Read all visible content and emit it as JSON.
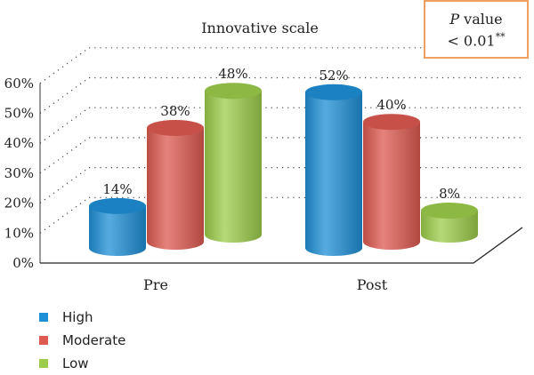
{
  "pvalue": {
    "line1_italic": "P",
    "line1_rest": " value",
    "line2": "< 0.01",
    "line2_sup": "**"
  },
  "colors": {
    "High": "#1f8fd6",
    "Moderate": "#dd5a50",
    "Low": "#9ccc4a",
    "pbox_border": "#f0a060"
  },
  "chart_data": {
    "type": "bar",
    "title": "Innovative scale",
    "categories": [
      "Pre",
      "Post"
    ],
    "series": [
      {
        "name": "High",
        "values": [
          14,
          52
        ],
        "labels": [
          "14%",
          "52%"
        ]
      },
      {
        "name": "Moderate",
        "values": [
          38,
          40
        ],
        "labels": [
          "38%",
          "40%"
        ]
      },
      {
        "name": "Low",
        "values": [
          48,
          8
        ],
        "labels": [
          "48%",
          "8%"
        ]
      }
    ],
    "yticks": [
      "0%",
      "10%",
      "20%",
      "30%",
      "40%",
      "50%",
      "60%"
    ],
    "ylim": [
      0,
      60
    ],
    "grid": true,
    "legend_position": "bottom-left",
    "style": "3d-cylinder"
  }
}
